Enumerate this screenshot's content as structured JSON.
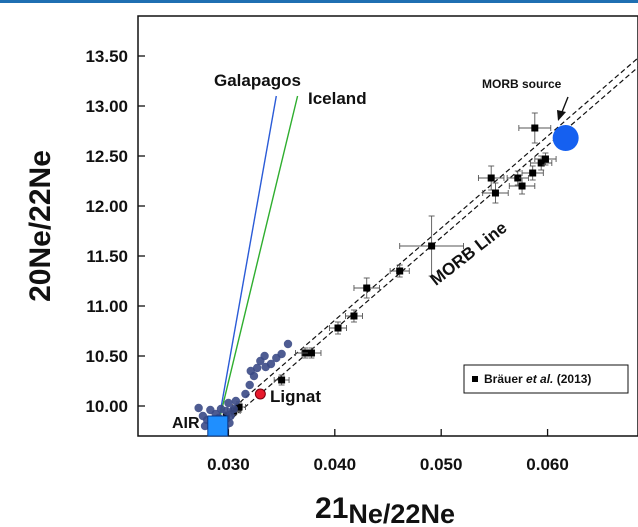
{
  "chart_data": {
    "type": "scatter",
    "xlabel": {
      "pre": "21",
      "main": "Ne/22Ne"
    },
    "ylabel": "20Ne/22Ne",
    "xlim": [
      0.0215,
      0.0685
    ],
    "ylim": [
      9.7,
      13.9
    ],
    "x_ticks": [
      {
        "value": 0.03,
        "label": "0.030"
      },
      {
        "value": 0.04,
        "label": "0.040"
      },
      {
        "value": 0.05,
        "label": "0.050"
      },
      {
        "value": 0.06,
        "label": "0.060"
      }
    ],
    "y_ticks": [
      {
        "value": 10.0,
        "label": "10.00"
      },
      {
        "value": 10.5,
        "label": "10.50"
      },
      {
        "value": 11.0,
        "label": "11.00"
      },
      {
        "value": 11.5,
        "label": "11.50"
      },
      {
        "value": 12.0,
        "label": "12.00"
      },
      {
        "value": 12.5,
        "label": "12.50"
      },
      {
        "value": 13.0,
        "label": "13.00"
      },
      {
        "value": 13.5,
        "label": "13.50"
      }
    ],
    "grid": false,
    "series": [
      {
        "name": "Bräuer et al. (2013)",
        "marker": "square",
        "color": "#000000",
        "points": [
          {
            "x": 0.0298,
            "y": 9.9,
            "xerr": 0.0006,
            "yerr": 0.04
          },
          {
            "x": 0.0305,
            "y": 9.95,
            "xerr": 0.0006,
            "yerr": 0.04
          },
          {
            "x": 0.031,
            "y": 9.99,
            "xerr": 0.0006,
            "yerr": 0.05
          },
          {
            "x": 0.035,
            "y": 10.26,
            "xerr": 0.0007,
            "yerr": 0.05
          },
          {
            "x": 0.0372,
            "y": 10.53,
            "xerr": 0.0009,
            "yerr": 0.05
          },
          {
            "x": 0.0378,
            "y": 10.53,
            "xerr": 0.0009,
            "yerr": 0.05
          },
          {
            "x": 0.0403,
            "y": 10.78,
            "xerr": 0.0008,
            "yerr": 0.06
          },
          {
            "x": 0.0418,
            "y": 10.9,
            "xerr": 0.0008,
            "yerr": 0.06
          },
          {
            "x": 0.043,
            "y": 11.18,
            "xerr": 0.0012,
            "yerr": 0.1
          },
          {
            "x": 0.0461,
            "y": 11.35,
            "xerr": 0.0009,
            "yerr": 0.06
          },
          {
            "x": 0.0491,
            "y": 11.6,
            "xerr": 0.003,
            "yerr": 0.3
          },
          {
            "x": 0.0547,
            "y": 12.28,
            "xerr": 0.0012,
            "yerr": 0.12
          },
          {
            "x": 0.0551,
            "y": 12.13,
            "xerr": 0.0012,
            "yerr": 0.1
          },
          {
            "x": 0.0572,
            "y": 12.28,
            "xerr": 0.001,
            "yerr": 0.07
          },
          {
            "x": 0.0576,
            "y": 12.2,
            "xerr": 0.0012,
            "yerr": 0.08
          },
          {
            "x": 0.0586,
            "y": 12.33,
            "xerr": 0.001,
            "yerr": 0.07
          },
          {
            "x": 0.0594,
            "y": 12.43,
            "xerr": 0.001,
            "yerr": 0.07
          },
          {
            "x": 0.0598,
            "y": 12.47,
            "xerr": 0.001,
            "yerr": 0.06
          },
          {
            "x": 0.0588,
            "y": 12.78,
            "xerr": 0.0015,
            "yerr": 0.15
          }
        ]
      },
      {
        "marker": "circle",
        "color": "#3b4a86",
        "points": [
          {
            "x": 0.0272,
            "y": 9.98
          },
          {
            "x": 0.0276,
            "y": 9.9
          },
          {
            "x": 0.028,
            "y": 9.86
          },
          {
            "x": 0.0283,
            "y": 9.96
          },
          {
            "x": 0.0286,
            "y": 9.84
          },
          {
            "x": 0.0288,
            "y": 9.92
          },
          {
            "x": 0.0291,
            "y": 9.88
          },
          {
            "x": 0.0293,
            "y": 9.97
          },
          {
            "x": 0.0296,
            "y": 9.85
          },
          {
            "x": 0.0298,
            "y": 9.95
          },
          {
            "x": 0.03,
            "y": 10.03
          },
          {
            "x": 0.0302,
            "y": 9.9
          },
          {
            "x": 0.0305,
            "y": 9.97
          },
          {
            "x": 0.0307,
            "y": 10.05
          },
          {
            "x": 0.0278,
            "y": 9.8
          },
          {
            "x": 0.0284,
            "y": 9.78
          },
          {
            "x": 0.029,
            "y": 9.8
          },
          {
            "x": 0.0297,
            "y": 9.79
          },
          {
            "x": 0.0301,
            "y": 9.83
          },
          {
            "x": 0.0316,
            "y": 10.12
          },
          {
            "x": 0.032,
            "y": 10.21
          },
          {
            "x": 0.0324,
            "y": 10.3
          },
          {
            "x": 0.0327,
            "y": 10.38
          },
          {
            "x": 0.033,
            "y": 10.45
          },
          {
            "x": 0.0335,
            "y": 10.39
          },
          {
            "x": 0.034,
            "y": 10.42
          },
          {
            "x": 0.0345,
            "y": 10.48
          },
          {
            "x": 0.035,
            "y": 10.52
          },
          {
            "x": 0.0356,
            "y": 10.62
          },
          {
            "x": 0.0321,
            "y": 10.35
          },
          {
            "x": 0.0334,
            "y": 10.5
          }
        ]
      }
    ],
    "special_points": [
      {
        "name": "AIR",
        "x": 0.029,
        "y": 9.8,
        "marker": "square",
        "color": "#1f8fff"
      },
      {
        "name": "Lignat",
        "x": 0.033,
        "y": 10.12,
        "marker": "circle",
        "color": "#e8192c"
      },
      {
        "name": "MORB source",
        "x": 0.0617,
        "y": 12.68,
        "marker": "circle",
        "color": "#1560f0"
      }
    ],
    "lines": [
      {
        "name": "Galapagos",
        "color": "#2a5bd7",
        "from": {
          "x": 0.029,
          "y": 9.8
        },
        "to": {
          "x": 0.0345,
          "y": 13.1
        }
      },
      {
        "name": "Iceland",
        "color": "#2fae2f",
        "from": {
          "x": 0.029,
          "y": 9.8
        },
        "to": {
          "x": 0.0365,
          "y": 13.1
        }
      },
      {
        "name": "MORB Line",
        "color": "#111111",
        "dashed": true,
        "from": {
          "x": 0.029,
          "y": 9.8
        },
        "to": {
          "x": 0.069,
          "y": 13.48
        }
      }
    ],
    "annotations": {
      "air": "AIR",
      "lignat": "Lignat",
      "morb_source": "MORB source",
      "morb_line": "MORB Line",
      "galapagos": "Galapagos",
      "iceland": "Iceland"
    },
    "legend": {
      "placement": "bottom-right",
      "prefix": "Bräuer ",
      "italic": "et al.",
      "suffix": " (2013)"
    }
  }
}
